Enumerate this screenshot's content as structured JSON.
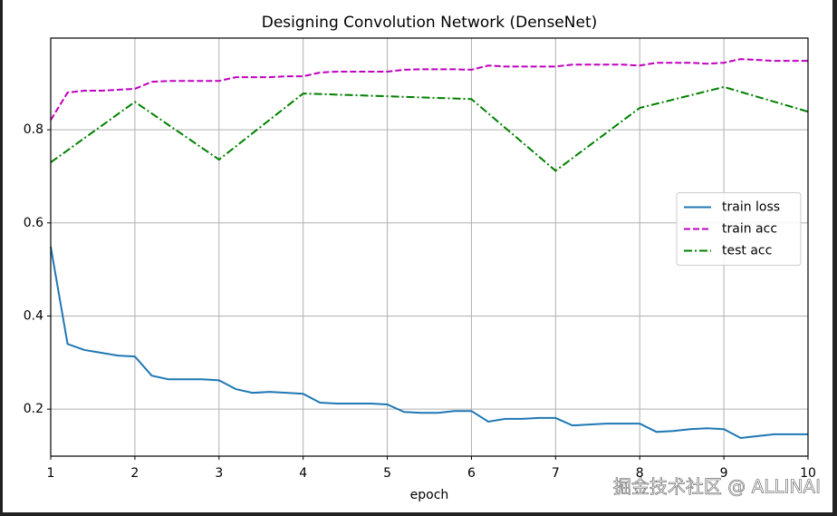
{
  "chart_data": {
    "type": "line",
    "title": "Designing Convolution Network (DenseNet)",
    "xlabel": "epoch",
    "watermark": "掘金技术社区 @ ALLINAI",
    "x": [
      1,
      1.2,
      1.4,
      1.6,
      1.8,
      2,
      2.2,
      2.4,
      2.6,
      2.8,
      3,
      3.2,
      3.4,
      3.6,
      3.8,
      4,
      4.2,
      4.4,
      4.6,
      4.8,
      5,
      5.2,
      5.4,
      5.6,
      5.8,
      6,
      6.2,
      6.4,
      6.6,
      6.8,
      7,
      7.2,
      7.4,
      7.6,
      7.8,
      8,
      8.2,
      8.4,
      8.6,
      8.8,
      9,
      9.2,
      9.4,
      9.6,
      9.8,
      10
    ],
    "series": [
      {
        "name": "train loss",
        "color": "#1f77b4",
        "linestyle": "solid",
        "values": [
          0.549,
          0.34,
          0.327,
          0.321,
          0.315,
          0.313,
          0.272,
          0.264,
          0.264,
          0.264,
          0.262,
          0.243,
          0.235,
          0.237,
          0.235,
          0.233,
          0.214,
          0.212,
          0.212,
          0.212,
          0.21,
          0.194,
          0.192,
          0.192,
          0.196,
          0.196,
          0.173,
          0.179,
          0.179,
          0.181,
          0.181,
          0.165,
          0.167,
          0.169,
          0.169,
          0.169,
          0.151,
          0.153,
          0.157,
          0.159,
          0.157,
          0.138,
          0.142,
          0.146,
          0.146,
          0.146
        ]
      },
      {
        "name": "train acc",
        "color": "#bf00bf",
        "linestyle": "dashed",
        "values": [
          0.821,
          0.88,
          0.884,
          0.884,
          0.886,
          0.888,
          0.903,
          0.905,
          0.905,
          0.905,
          0.905,
          0.913,
          0.913,
          0.913,
          0.915,
          0.915,
          0.923,
          0.925,
          0.925,
          0.925,
          0.925,
          0.929,
          0.93,
          0.93,
          0.93,
          0.929,
          0.938,
          0.936,
          0.936,
          0.936,
          0.936,
          0.94,
          0.94,
          0.94,
          0.94,
          0.938,
          0.944,
          0.944,
          0.944,
          0.942,
          0.944,
          0.952,
          0.95,
          0.948,
          0.948,
          0.948
        ]
      },
      {
        "name": "test acc",
        "color": "#008000",
        "linestyle": "dashdot",
        "x": [
          1,
          2,
          3,
          4,
          5,
          6,
          7,
          8,
          9,
          10
        ],
        "values": [
          0.73,
          0.86,
          0.736,
          0.878,
          0.872,
          0.866,
          0.712,
          0.847,
          0.892,
          0.839
        ]
      }
    ],
    "xlim": [
      1,
      10
    ],
    "xticks": [
      1,
      2,
      3,
      4,
      5,
      6,
      7,
      8,
      9,
      10
    ],
    "ylim": [
      0.099,
      0.997
    ],
    "yticks": [
      0.2,
      0.4,
      0.6,
      0.8
    ],
    "grid": true,
    "legend": "center right"
  }
}
